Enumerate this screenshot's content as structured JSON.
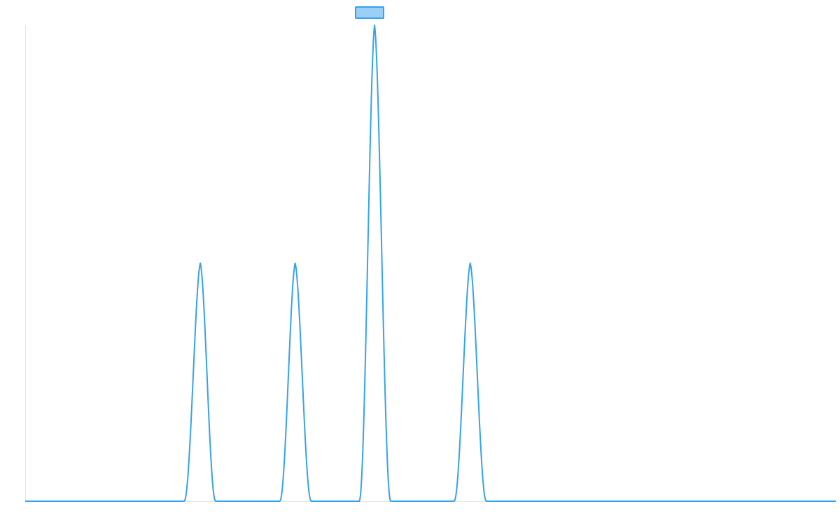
{
  "chart_data": {
    "type": "line",
    "title": "",
    "xlabel": "",
    "ylabel": "",
    "x": [
      0,
      0.196,
      0.216,
      0.235,
      0.314,
      0.333,
      0.353,
      0.412,
      0.431,
      0.451,
      0.529,
      0.549,
      0.569,
      1
    ],
    "series": [
      {
        "values": [
          0,
          0,
          1,
          0,
          0,
          1,
          0,
          0,
          2,
          0,
          0,
          1,
          0,
          0
        ],
        "color": "#36a2eb",
        "fill_color": "#9ad0f5"
      }
    ],
    "xlim": [
      0,
      1
    ],
    "ylim": [
      0,
      2
    ],
    "grid": false,
    "legend": "top-center",
    "curve": "peaks"
  }
}
